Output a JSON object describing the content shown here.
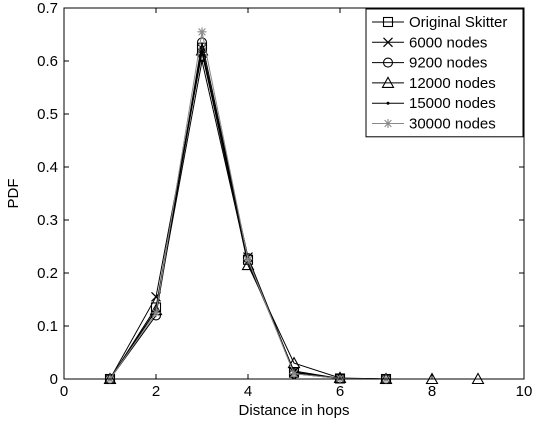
{
  "chart_data": {
    "type": "line",
    "title": "",
    "xlabel": "Distance in hops",
    "ylabel": "PDF",
    "xlim": [
      0,
      10
    ],
    "ylim": [
      0,
      0.7
    ],
    "xticks": [
      0,
      2,
      4,
      6,
      8,
      10
    ],
    "yticks": [
      0,
      0.1,
      0.2,
      0.3,
      0.4,
      0.5,
      0.6,
      0.7
    ],
    "xtick_labels": [
      "0",
      "2",
      "4",
      "6",
      "8",
      "10"
    ],
    "ytick_labels": [
      "0",
      "0.1",
      "0.2",
      "0.3",
      "0.4",
      "0.5",
      "0.6",
      "0.7"
    ],
    "grid": false,
    "legend_position": "top-right",
    "series": [
      {
        "name": "Original Skitter",
        "marker": "square",
        "color": "#000000",
        "x": [
          1,
          2,
          3,
          4,
          5,
          6,
          7
        ],
        "y": [
          0.0,
          0.135,
          0.625,
          0.225,
          0.012,
          0.001,
          0.0
        ]
      },
      {
        "name": "6000 nodes",
        "marker": "x",
        "color": "#000000",
        "x": [
          1,
          2,
          3,
          4,
          5,
          6,
          7
        ],
        "y": [
          0.0,
          0.155,
          0.615,
          0.23,
          0.013,
          0.001,
          0.0
        ]
      },
      {
        "name": "9200 nodes",
        "marker": "circle",
        "color": "#000000",
        "x": [
          1,
          2,
          3,
          4,
          5,
          6,
          7
        ],
        "y": [
          0.0,
          0.12,
          0.635,
          0.228,
          0.01,
          0.001,
          0.0
        ]
      },
      {
        "name": "12000 nodes",
        "marker": "triangle",
        "color": "#000000",
        "x": [
          1,
          2,
          3,
          4,
          5,
          6,
          7,
          8,
          9
        ],
        "y": [
          0.0,
          0.13,
          0.62,
          0.215,
          0.03,
          0.002,
          0.0,
          0.0,
          0.0
        ]
      },
      {
        "name": "15000 nodes",
        "marker": "dot",
        "color": "#000000",
        "x": [
          1,
          2,
          3,
          4,
          5,
          6,
          7
        ],
        "y": [
          0.0,
          0.13,
          0.6,
          0.22,
          0.015,
          0.001,
          0.0
        ]
      },
      {
        "name": "30000 nodes",
        "marker": "star",
        "color": "#8a8a8a",
        "x": [
          1,
          2,
          3,
          4,
          5,
          6,
          7
        ],
        "y": [
          0.0,
          0.125,
          0.655,
          0.225,
          0.01,
          0.001,
          0.0
        ]
      }
    ]
  }
}
